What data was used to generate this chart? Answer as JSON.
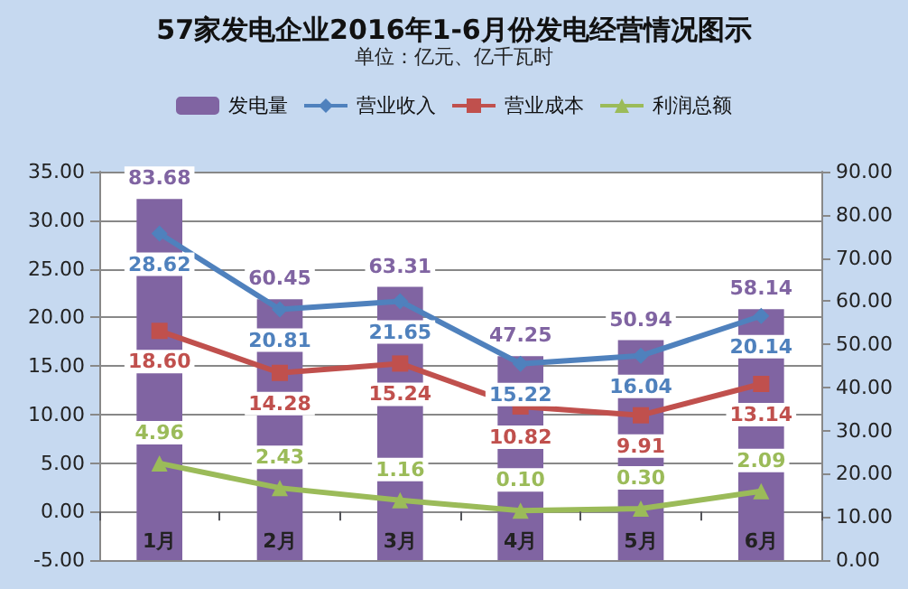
{
  "chart_data": {
    "type": "bar",
    "title": "57家发电企业2016年1-6月份发电经营情况图示",
    "subtitle": "单位：亿元、亿千瓦时",
    "categories": [
      "1月",
      "2月",
      "3月",
      "4月",
      "5月",
      "6月"
    ],
    "series": [
      {
        "name": "发电量",
        "axis": "y2",
        "color": "#8064a2",
        "values": [
          83.68,
          60.45,
          63.31,
          47.25,
          50.94,
          58.14
        ],
        "value_labels": [
          "83.68",
          "60.45",
          "63.31",
          "47.25",
          "50.94",
          "58.14"
        ]
      },
      {
        "name": "营业收入",
        "type": "line",
        "marker": "diamond",
        "color": "#4f81bd",
        "values": [
          28.62,
          20.81,
          21.65,
          15.22,
          16.04,
          20.14
        ],
        "value_labels": [
          "28.62",
          "20.81",
          "21.65",
          "15.22",
          "16.04",
          "20.14"
        ]
      },
      {
        "name": "营业成本",
        "type": "line",
        "marker": "square",
        "color": "#c0504d",
        "values": [
          18.6,
          14.28,
          15.24,
          10.82,
          9.91,
          13.14
        ],
        "value_labels": [
          "18.60",
          "14.28",
          "15.24",
          "10.82",
          "9.91",
          "13.14"
        ]
      },
      {
        "name": "利润总额",
        "type": "line",
        "marker": "triangle",
        "color": "#9bbb59",
        "values": [
          4.96,
          2.43,
          1.16,
          0.1,
          0.3,
          2.09
        ],
        "value_labels": [
          "4.96",
          "2.43",
          "1.16",
          "0.10",
          "0.30",
          "2.09"
        ]
      }
    ],
    "ylim": [
      -5,
      35
    ],
    "yticks": [
      {
        "value": -5,
        "label": "-5.00"
      },
      {
        "value": 0,
        "label": "0.00"
      },
      {
        "value": 5,
        "label": "5.00"
      },
      {
        "value": 10,
        "label": "10.00"
      },
      {
        "value": 15,
        "label": "15.00"
      },
      {
        "value": 20,
        "label": "20.00"
      },
      {
        "value": 25,
        "label": "25.00"
      },
      {
        "value": 30,
        "label": "30.00"
      },
      {
        "value": 35,
        "label": "35.00"
      }
    ],
    "y2lim": [
      0,
      90
    ],
    "y2ticks": [
      {
        "value": 0,
        "label": "0.00"
      },
      {
        "value": 10,
        "label": "10.00"
      },
      {
        "value": 20,
        "label": "20.00"
      },
      {
        "value": 30,
        "label": "30.00"
      },
      {
        "value": 40,
        "label": "40.00"
      },
      {
        "value": 50,
        "label": "50.00"
      },
      {
        "value": 60,
        "label": "60.00"
      },
      {
        "value": 70,
        "label": "70.00"
      },
      {
        "value": 80,
        "label": "80.00"
      },
      {
        "value": 90,
        "label": "90.00"
      }
    ],
    "grid": "y",
    "legend": "top"
  }
}
